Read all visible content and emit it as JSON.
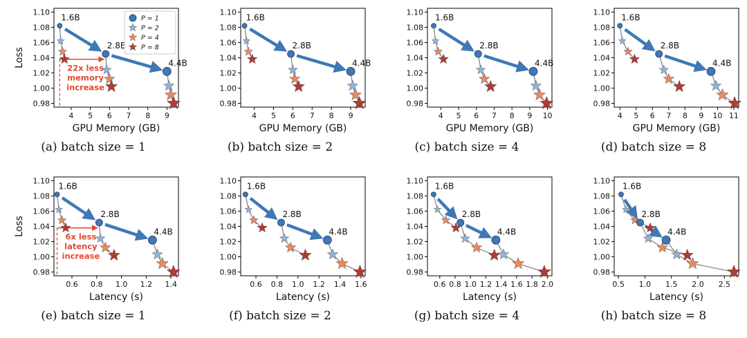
{
  "legend": {
    "entries": [
      {
        "label": "P = 1",
        "marker": "circle",
        "color": "#3f78b5"
      },
      {
        "label": "P = 2",
        "marker": "star",
        "color": "#8fb4d8"
      },
      {
        "label": "P = 4",
        "marker": "star",
        "color": "#e98a63"
      },
      {
        "label": "P = 8",
        "marker": "star",
        "color": "#b33a33"
      }
    ]
  },
  "colors": {
    "p1": "#3f78b5",
    "p2": "#8fb4d8",
    "p4": "#e98a63",
    "p8": "#b33a33",
    "arrow": "#3f78b5",
    "annotation": "#e24a33",
    "path": "#888888"
  },
  "chart_data": [
    {
      "type": "scatter",
      "caption": "(a) batch size = 1",
      "xlabel": "GPU Memory (GB)",
      "ylabel": "Loss",
      "xlim": [
        3.1,
        9.6
      ],
      "ylim": [
        0.975,
        1.105
      ],
      "xticks": [
        4,
        5,
        6,
        7,
        8,
        9
      ],
      "yticks": [
        0.98,
        1.0,
        1.02,
        1.04,
        1.06,
        1.08,
        1.1
      ],
      "show_legend": true,
      "models": [
        {
          "name": "1.6B",
          "points": [
            [
              3.4,
              1.082
            ],
            [
              3.45,
              1.062
            ],
            [
              3.55,
              1.048
            ],
            [
              3.65,
              1.038
            ]
          ]
        },
        {
          "name": "2.8B",
          "points": [
            [
              5.8,
              1.045
            ],
            [
              5.85,
              1.024
            ],
            [
              6.0,
              1.012
            ],
            [
              6.1,
              1.002
            ]
          ]
        },
        {
          "name": "4.4B",
          "points": [
            [
              9.0,
              1.022
            ],
            [
              9.1,
              1.003
            ],
            [
              9.2,
              0.991
            ],
            [
              9.35,
              0.98
            ]
          ]
        }
      ],
      "annotation": {
        "text": [
          "22x less",
          "memory",
          "increase"
        ],
        "from": [
          3.4,
          1.038
        ],
        "to": [
          5.8,
          1.038
        ]
      }
    },
    {
      "type": "scatter",
      "caption": "(b) batch size = 2",
      "xlabel": "GPU Memory (GB)",
      "ylabel": "",
      "xlim": [
        3.3,
        9.75
      ],
      "ylim": [
        0.975,
        1.105
      ],
      "xticks": [
        4,
        5,
        6,
        7,
        8,
        9
      ],
      "yticks": [
        0.98,
        1.0,
        1.02,
        1.04,
        1.06,
        1.08,
        1.1
      ],
      "models": [
        {
          "name": "1.6B",
          "points": [
            [
              3.5,
              1.082
            ],
            [
              3.6,
              1.062
            ],
            [
              3.7,
              1.048
            ],
            [
              3.9,
              1.038
            ]
          ]
        },
        {
          "name": "2.8B",
          "points": [
            [
              5.9,
              1.045
            ],
            [
              6.0,
              1.024
            ],
            [
              6.1,
              1.012
            ],
            [
              6.3,
              1.002
            ]
          ]
        },
        {
          "name": "4.4B",
          "points": [
            [
              9.0,
              1.022
            ],
            [
              9.1,
              1.003
            ],
            [
              9.25,
              0.991
            ],
            [
              9.45,
              0.98
            ]
          ]
        }
      ]
    },
    {
      "type": "scatter",
      "caption": "(c) batch size = 4",
      "xlabel": "GPU Memory (GB)",
      "ylabel": "",
      "xlim": [
        3.25,
        10.25
      ],
      "ylim": [
        0.975,
        1.105
      ],
      "xticks": [
        4,
        5,
        6,
        7,
        8,
        9,
        10
      ],
      "yticks": [
        0.98,
        1.0,
        1.02,
        1.04,
        1.06,
        1.08,
        1.1
      ],
      "models": [
        {
          "name": "1.6B",
          "points": [
            [
              3.6,
              1.082
            ],
            [
              3.7,
              1.062
            ],
            [
              3.85,
              1.048
            ],
            [
              4.15,
              1.038
            ]
          ]
        },
        {
          "name": "2.8B",
          "points": [
            [
              6.1,
              1.045
            ],
            [
              6.25,
              1.024
            ],
            [
              6.45,
              1.012
            ],
            [
              6.8,
              1.002
            ]
          ]
        },
        {
          "name": "4.4B",
          "points": [
            [
              9.2,
              1.022
            ],
            [
              9.35,
              1.003
            ],
            [
              9.55,
              0.991
            ],
            [
              9.95,
              0.98
            ]
          ]
        }
      ]
    },
    {
      "type": "scatter",
      "caption": "(d) batch size = 8",
      "xlabel": "GPU Memory (GB)",
      "ylabel": "",
      "xlim": [
        3.65,
        11.3
      ],
      "ylim": [
        0.975,
        1.105
      ],
      "xticks": [
        4,
        5,
        6,
        7,
        8,
        9,
        10,
        11
      ],
      "yticks": [
        0.98,
        1.0,
        1.02,
        1.04,
        1.06,
        1.08,
        1.1
      ],
      "models": [
        {
          "name": "1.6B",
          "points": [
            [
              4.0,
              1.082
            ],
            [
              4.15,
              1.062
            ],
            [
              4.5,
              1.048
            ],
            [
              4.9,
              1.038
            ]
          ]
        },
        {
          "name": "2.8B",
          "points": [
            [
              6.4,
              1.045
            ],
            [
              6.7,
              1.024
            ],
            [
              7.0,
              1.012
            ],
            [
              7.65,
              1.002
            ]
          ]
        },
        {
          "name": "4.4B",
          "points": [
            [
              9.6,
              1.022
            ],
            [
              9.9,
              1.003
            ],
            [
              10.3,
              0.991
            ],
            [
              11.05,
              0.98
            ]
          ]
        }
      ]
    },
    {
      "type": "scatter",
      "caption": "(e) batch size = 1",
      "xlabel": "Latency (s)",
      "ylabel": "Loss",
      "xlim": [
        0.455,
        1.46
      ],
      "ylim": [
        0.975,
        1.105
      ],
      "xticks": [
        0.6,
        0.8,
        1.0,
        1.2,
        1.4
      ],
      "yticks": [
        0.98,
        1.0,
        1.02,
        1.04,
        1.06,
        1.08,
        1.1
      ],
      "models": [
        {
          "name": "1.6B",
          "points": [
            [
              0.48,
              1.082
            ],
            [
              0.495,
              1.062
            ],
            [
              0.52,
              1.048
            ],
            [
              0.55,
              1.038
            ]
          ]
        },
        {
          "name": "2.8B",
          "points": [
            [
              0.82,
              1.045
            ],
            [
              0.83,
              1.024
            ],
            [
              0.87,
              1.012
            ],
            [
              0.94,
              1.002
            ]
          ]
        },
        {
          "name": "4.4B",
          "points": [
            [
              1.25,
              1.022
            ],
            [
              1.29,
              1.003
            ],
            [
              1.33,
              0.991
            ],
            [
              1.42,
              0.98
            ]
          ]
        }
      ],
      "annotation": {
        "text": [
          "6x less",
          "latency",
          "increase"
        ],
        "from": [
          0.48,
          1.038
        ],
        "to": [
          0.82,
          1.038
        ]
      }
    },
    {
      "type": "scatter",
      "caption": "(f) batch size = 2",
      "xlabel": "Latency (s)",
      "ylabel": "",
      "xlim": [
        0.455,
        1.64
      ],
      "ylim": [
        0.975,
        1.105
      ],
      "xticks": [
        0.6,
        0.8,
        1.0,
        1.2,
        1.4,
        1.6
      ],
      "yticks": [
        0.98,
        1.0,
        1.02,
        1.04,
        1.06,
        1.08,
        1.1
      ],
      "models": [
        {
          "name": "1.6B",
          "points": [
            [
              0.5,
              1.082
            ],
            [
              0.53,
              1.062
            ],
            [
              0.58,
              1.048
            ],
            [
              0.66,
              1.038
            ]
          ]
        },
        {
          "name": "2.8B",
          "points": [
            [
              0.84,
              1.045
            ],
            [
              0.87,
              1.024
            ],
            [
              0.93,
              1.012
            ],
            [
              1.07,
              1.002
            ]
          ]
        },
        {
          "name": "4.4B",
          "points": [
            [
              1.28,
              1.022
            ],
            [
              1.33,
              1.003
            ],
            [
              1.42,
              0.991
            ],
            [
              1.59,
              0.98
            ]
          ]
        }
      ]
    },
    {
      "type": "scatter",
      "caption": "(g) batch size = 4",
      "xlabel": "Latency (s)",
      "ylabel": "",
      "xlim": [
        0.44,
        2.06
      ],
      "ylim": [
        0.975,
        1.105
      ],
      "xticks": [
        0.6,
        0.8,
        1.0,
        1.2,
        1.4,
        1.6,
        1.8,
        2.0
      ],
      "yticks": [
        0.98,
        1.0,
        1.02,
        1.04,
        1.06,
        1.08,
        1.1
      ],
      "models": [
        {
          "name": "1.6B",
          "points": [
            [
              0.52,
              1.082
            ],
            [
              0.57,
              1.062
            ],
            [
              0.68,
              1.048
            ],
            [
              0.81,
              1.038
            ]
          ]
        },
        {
          "name": "2.8B",
          "points": [
            [
              0.87,
              1.045
            ],
            [
              0.93,
              1.024
            ],
            [
              1.08,
              1.012
            ],
            [
              1.31,
              1.002
            ]
          ]
        },
        {
          "name": "4.4B",
          "points": [
            [
              1.33,
              1.022
            ],
            [
              1.43,
              1.003
            ],
            [
              1.62,
              0.991
            ],
            [
              1.96,
              0.98
            ]
          ]
        }
      ]
    },
    {
      "type": "scatter",
      "caption": "(h) batch size = 8",
      "xlabel": "Latency (s)",
      "ylabel": "",
      "xlim": [
        0.42,
        2.77
      ],
      "ylim": [
        0.975,
        1.105
      ],
      "xticks": [
        0.5,
        1.0,
        1.5,
        2.0,
        2.5
      ],
      "yticks": [
        0.98,
        1.0,
        1.02,
        1.04,
        1.06,
        1.08,
        1.1
      ],
      "models": [
        {
          "name": "1.6B",
          "points": [
            [
              0.55,
              1.082
            ],
            [
              0.64,
              1.062
            ],
            [
              0.81,
              1.048
            ],
            [
              1.1,
              1.038
            ]
          ]
        },
        {
          "name": "2.8B",
          "points": [
            [
              0.91,
              1.045
            ],
            [
              1.06,
              1.024
            ],
            [
              1.33,
              1.012
            ],
            [
              1.8,
              1.002
            ]
          ]
        },
        {
          "name": "4.4B",
          "points": [
            [
              1.4,
              1.022
            ],
            [
              1.6,
              1.003
            ],
            [
              1.9,
              0.991
            ],
            [
              2.68,
              0.98
            ]
          ]
        }
      ]
    }
  ]
}
